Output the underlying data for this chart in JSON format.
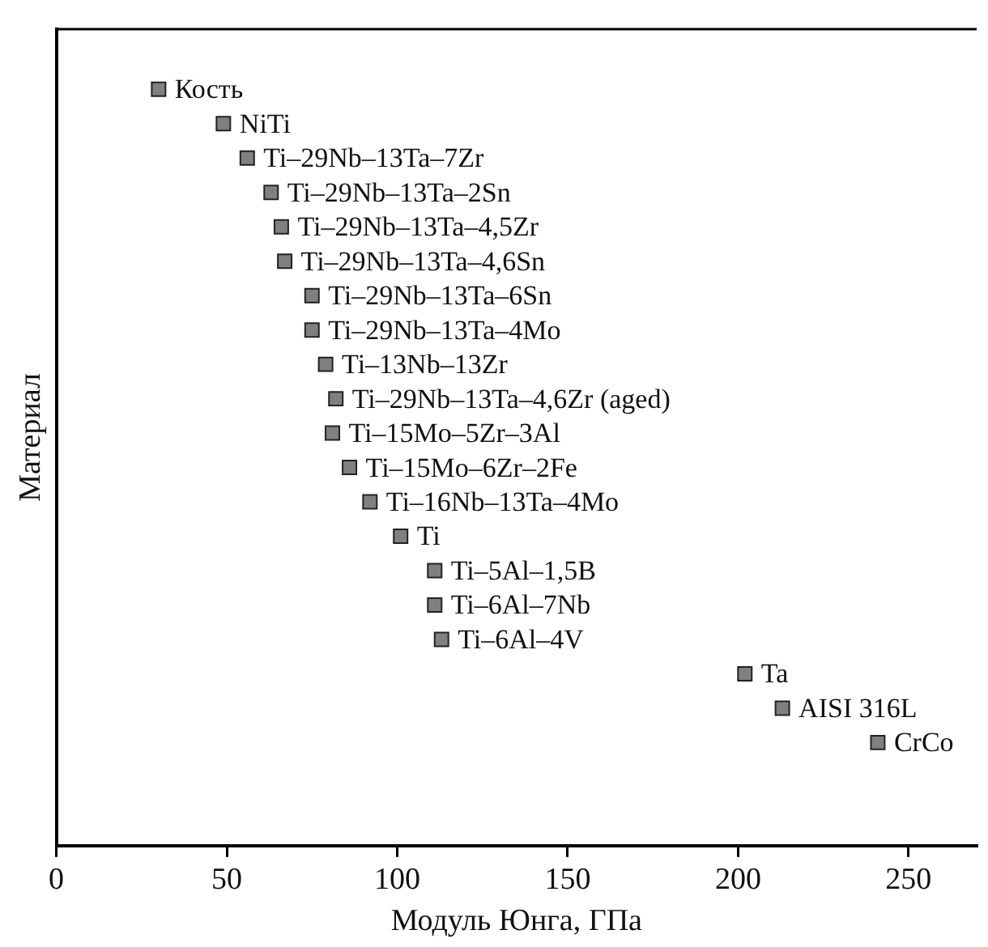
{
  "chart_data": {
    "type": "scatter",
    "orientation": "horizontal",
    "xlabel": "Модуль Юнга, ГПа",
    "ylabel": "Материал",
    "categories": [
      "Кость",
      "NiTi",
      "Ti–29Nb–13Ta–7Zr",
      "Ti–29Nb–13Ta–2Sn",
      "Ti–29Nb–13Ta–4,5Zr",
      "Ti–29Nb–13Ta–4,6Sn",
      "Ti–29Nb–13Ta–6Sn",
      "Ti–29Nb–13Ta–4Mo",
      "Ti–13Nb–13Zr",
      "Ti–29Nb–13Ta–4,6Zr (aged)",
      "Ti–15Mo–5Zr–3Al",
      "Ti–15Mo–6Zr–2Fe",
      "Ti–16Nb–13Ta–4Mo",
      "Ti",
      "Ti–5Al–1,5B",
      "Ti–6Al–7Nb",
      "Ti–6Al–4V",
      "Ta",
      "AISI 316L",
      "CrCo"
    ],
    "values": [
      30,
      49,
      56,
      63,
      66,
      67,
      75,
      75,
      79,
      82,
      81,
      86,
      92,
      101,
      111,
      111,
      113,
      202,
      213,
      241
    ],
    "color": "#808080",
    "marker": "square",
    "grid": false,
    "tick_labels": "x",
    "xlim": [
      0,
      270
    ],
    "xticks": [
      0,
      50,
      100,
      150,
      200,
      250
    ]
  }
}
